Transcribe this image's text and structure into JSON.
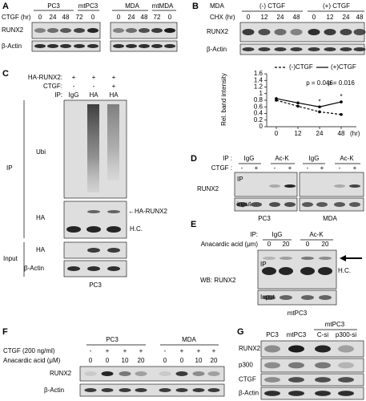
{
  "panel_a": {
    "label": "A",
    "treatment": "CTGF (hr)",
    "cell_lines": [
      "PC3",
      "mtPC3",
      "MDA",
      "mtMDA"
    ],
    "lanes": [
      "0",
      "24",
      "48",
      "72",
      "0",
      "0",
      "24",
      "48",
      "72",
      "0"
    ],
    "rows": [
      "RUNX2",
      "β-Actin"
    ]
  },
  "panel_b": {
    "label": "B",
    "cell_line": "MDA",
    "conditions": [
      "(-) CTGF",
      "(+) CTGF"
    ],
    "treatment": "CHX (hr)",
    "lanes": [
      "0",
      "12",
      "24",
      "48",
      "0",
      "12",
      "24",
      "48"
    ],
    "rows": [
      "RUNX2",
      "β-Actin"
    ]
  },
  "chart_data": {
    "type": "line",
    "y_label": "Rel. band intensity",
    "x_unit": "(hr)",
    "categories": [
      "0",
      "12",
      "24",
      "48"
    ],
    "series": [
      {
        "name": "(-)CTGF",
        "color": "#000000",
        "line_style": "dashed",
        "values": [
          0.8,
          0.62,
          0.45,
          0.37
        ]
      },
      {
        "name": "(+)CTGF",
        "color": "#000000",
        "line_style": "solid",
        "values": [
          0.85,
          0.72,
          0.6,
          0.75
        ]
      }
    ],
    "ylim": [
      0,
      1.6
    ],
    "yticks": [
      0,
      0.2,
      0.4,
      0.6,
      0.8,
      1,
      1.2,
      1.4,
      1.6
    ],
    "legend": "top",
    "annotations": [
      "p = 0.046",
      "p = 0.016"
    ],
    "annotation_color": "#e8141b",
    "significance_marks": [
      "*",
      "*"
    ]
  },
  "panel_c": {
    "label": "C",
    "ha_runx2": {
      "label": "HA-RUNX2:",
      "lanes": [
        "+",
        "+",
        "+"
      ]
    },
    "ctgf": {
      "label": "CTGF:",
      "lanes": [
        "-",
        "-",
        "+"
      ]
    },
    "ip": {
      "label": "IP:",
      "lanes": [
        "IgG",
        "HA",
        "HA"
      ]
    },
    "blots": [
      "Ubi",
      "HA"
    ],
    "markers": [
      "←HA-RUNX2",
      "H.C."
    ],
    "groups": [
      "IP",
      "Input"
    ],
    "input_rows": [
      "HA",
      "β-Actin"
    ],
    "cell_line": "PC3"
  },
  "panel_d": {
    "label": "D",
    "ip_label": "IP :",
    "ip_lanes": [
      "IgG",
      "Ac-K",
      "IgG",
      "Ac-K"
    ],
    "ctgf_label": "CTGF :",
    "ctgf_lanes": [
      "-",
      "+",
      "-",
      "+",
      "-",
      "+",
      "-",
      "+"
    ],
    "row": "RUNX2",
    "sections": [
      "IP",
      "input"
    ],
    "cell_lines": [
      "PC3",
      "MDA"
    ]
  },
  "panel_e": {
    "label": "E",
    "ip_label": "IP:",
    "ip_lanes": [
      "IgG",
      "Ac-K"
    ],
    "treatment": "Anacardic acid (μm)",
    "lanes": [
      "0",
      "20",
      "0",
      "20"
    ],
    "marker": "H.C.",
    "sections": [
      "IP",
      "Input"
    ],
    "wb": "WB: RUNX2",
    "cell_line": "mtPC3"
  },
  "panel_f": {
    "label": "F",
    "cell_lines": [
      "PC3",
      "MDA"
    ],
    "ctgf": "CTGF (200 ng/ml)",
    "ctgf_lanes": [
      "-",
      "+",
      "+",
      "+",
      "-",
      "+",
      "+",
      "+"
    ],
    "treatment": "Anacardic acid (μM)",
    "treatment_lanes": [
      "0",
      "0",
      "10",
      "20",
      "0",
      "0",
      "10",
      "20"
    ],
    "rows": [
      "RUNX2",
      "β-Actin"
    ]
  },
  "panel_g": {
    "label": "G",
    "group": "mtPC3",
    "lanes": [
      "PC3",
      "mtPC3",
      "C-si",
      "p300-si"
    ],
    "rows": [
      "RUNX2",
      "p300",
      "CTGF",
      "β-Actin"
    ]
  }
}
